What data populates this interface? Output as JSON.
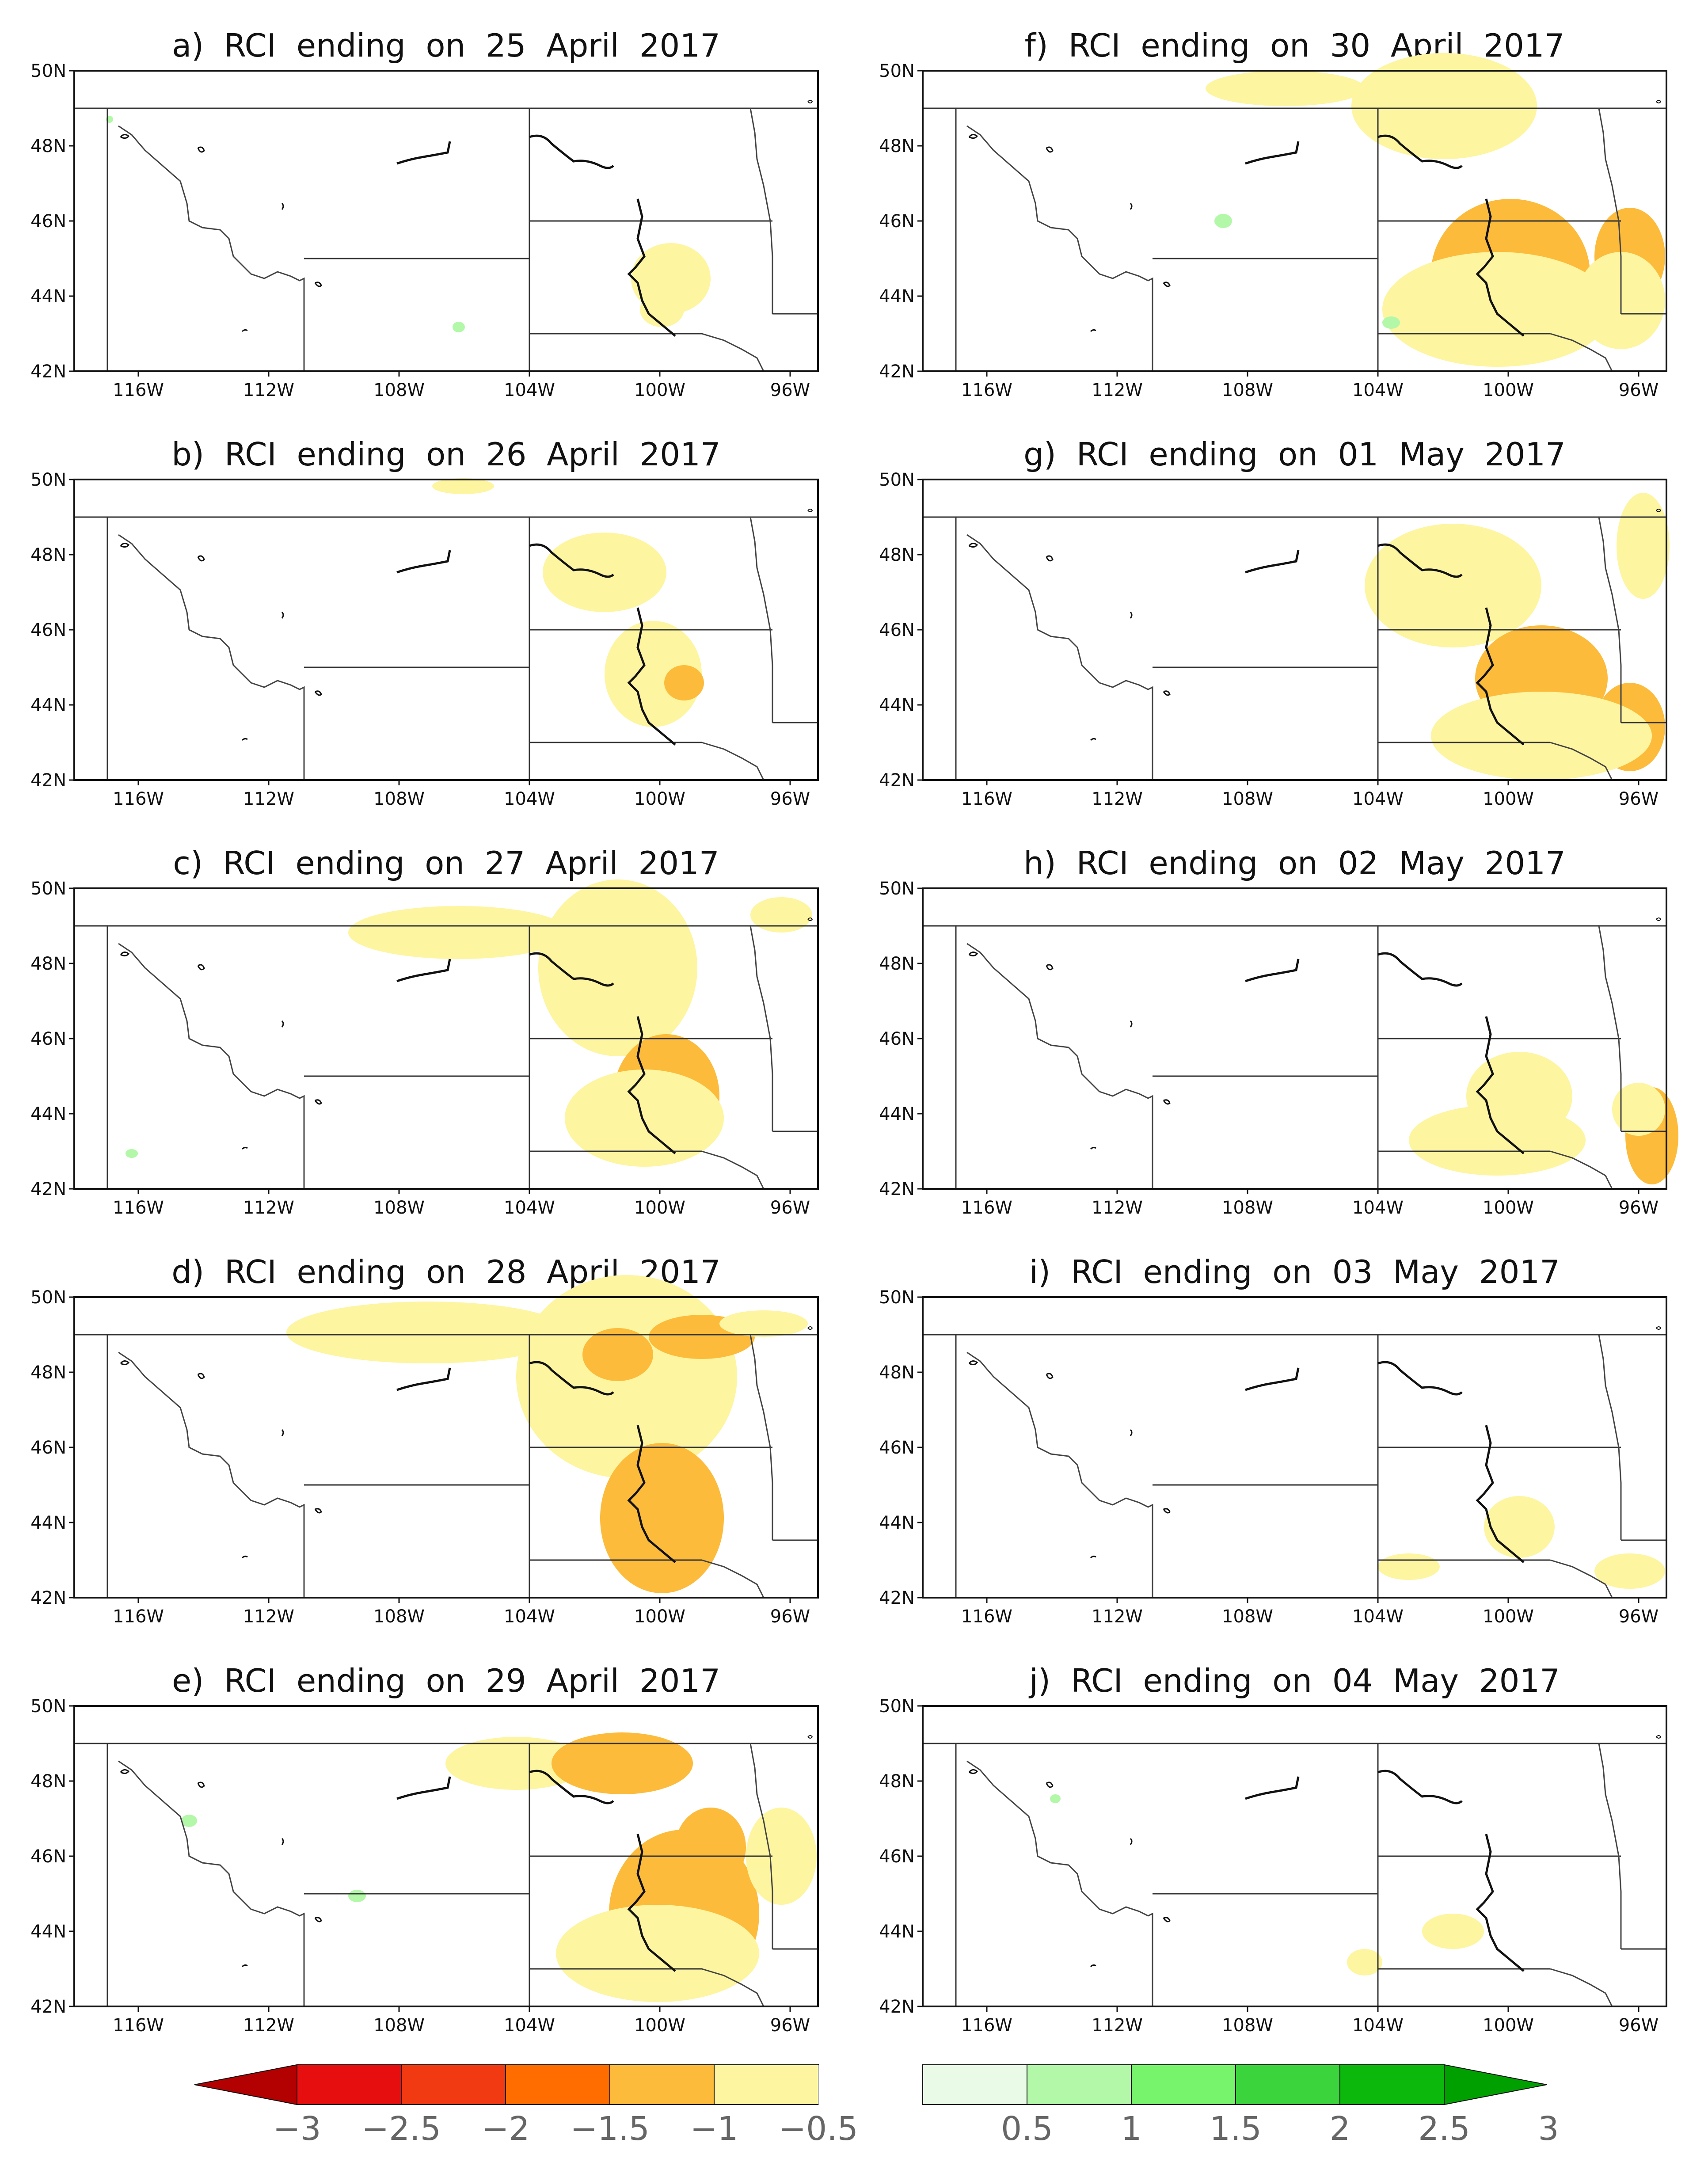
{
  "panels": [
    {
      "id": "a",
      "title": "a)  RCI  ending  on  25  April  2017"
    },
    {
      "id": "b",
      "title": "b)  RCI  ending  on  26  April  2017"
    },
    {
      "id": "c",
      "title": "c)  RCI  ending  on  27  April  2017"
    },
    {
      "id": "d",
      "title": "d)  RCI  ending  on  28  April  2017"
    },
    {
      "id": "e",
      "title": "e)  RCI  ending  on  29  April  2017"
    },
    {
      "id": "f",
      "title": "f)  RCI  ending  on  30  April  2017"
    },
    {
      "id": "g",
      "title": "g)  RCI  ending  on  01  May  2017"
    },
    {
      "id": "h",
      "title": "h)  RCI  ending  on  02  May  2017"
    },
    {
      "id": "i",
      "title": "i)  RCI  ending  on  03  May  2017"
    },
    {
      "id": "j",
      "title": "j)  RCI  ending  on  04  May  2017"
    }
  ],
  "lat_labels": [
    "50N",
    "48N",
    "46N",
    "44N",
    "42N"
  ],
  "lon_labels": [
    "116W",
    "112W",
    "108W",
    "104W",
    "100W",
    "96W"
  ],
  "colorbar": {
    "labels": [
      "−3",
      "−2.5",
      "−2",
      "−1.5",
      "−1",
      "−0.5",
      "0.5",
      "1",
      "1.5",
      "2",
      "2.5",
      "3"
    ],
    "colors": [
      "#b30000",
      "#e60e0e",
      "#f23a12",
      "#ff6d00",
      "#fcbb3b",
      "#fdf5a0",
      "#ffffff",
      "#e9fbe6",
      "#b2f8a8",
      "#78f46c",
      "#3cd43c",
      "#0bb80b",
      "#00a000"
    ]
  }
}
